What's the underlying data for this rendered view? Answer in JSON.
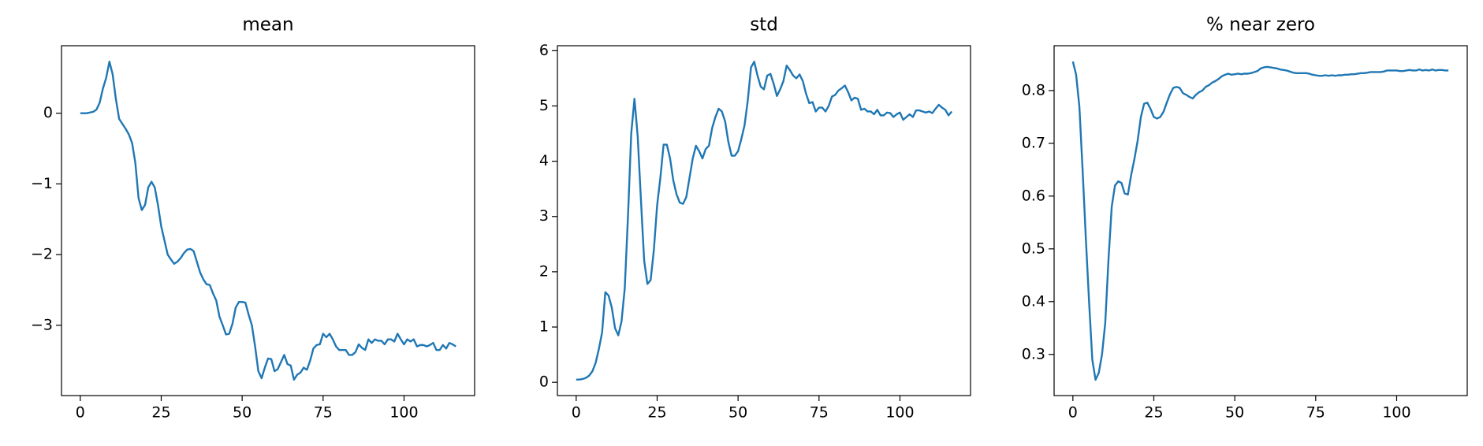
{
  "chart_data": [
    {
      "type": "line",
      "title": "mean",
      "color": "#1f77b4",
      "x": [
        0,
        1,
        2,
        3,
        4,
        5,
        6,
        7,
        8,
        9,
        10,
        11,
        12,
        13,
        14,
        15,
        16,
        17,
        18,
        19,
        20,
        21,
        22,
        23,
        24,
        25,
        26,
        27,
        28,
        29,
        30,
        31,
        32,
        33,
        34,
        35,
        36,
        37,
        38,
        39,
        40,
        41,
        42,
        43,
        44,
        45,
        46,
        47,
        48,
        49,
        50,
        51,
        52,
        53,
        54,
        55,
        56,
        57,
        58,
        59,
        60,
        61,
        62,
        63,
        64,
        65,
        66,
        67,
        68,
        69,
        70,
        71,
        72,
        73,
        74,
        75,
        76,
        77,
        78,
        79,
        80,
        81,
        82,
        83,
        84,
        85,
        86,
        87,
        88,
        89,
        90,
        91,
        92,
        93,
        94,
        95,
        96,
        97,
        98,
        99,
        100,
        101,
        102,
        103,
        104,
        105,
        106,
        107,
        108,
        109,
        110,
        111,
        112,
        113,
        114,
        115,
        116
      ],
      "values": [
        0,
        0,
        0,
        0.01,
        0.02,
        0.05,
        0.15,
        0.35,
        0.5,
        0.73,
        0.55,
        0.2,
        -0.08,
        -0.15,
        -0.22,
        -0.3,
        -0.42,
        -0.7,
        -1.2,
        -1.37,
        -1.3,
        -1.05,
        -0.97,
        -1.05,
        -1.3,
        -1.6,
        -1.8,
        -2.0,
        -2.07,
        -2.13,
        -2.1,
        -2.05,
        -1.98,
        -1.93,
        -1.92,
        -1.95,
        -2.1,
        -2.25,
        -2.35,
        -2.42,
        -2.43,
        -2.55,
        -2.65,
        -2.88,
        -3.0,
        -3.13,
        -3.12,
        -2.98,
        -2.75,
        -2.67,
        -2.67,
        -2.68,
        -2.85,
        -3.0,
        -3.3,
        -3.65,
        -3.75,
        -3.6,
        -3.47,
        -3.48,
        -3.65,
        -3.62,
        -3.52,
        -3.42,
        -3.55,
        -3.57,
        -3.77,
        -3.7,
        -3.67,
        -3.6,
        -3.63,
        -3.5,
        -3.33,
        -3.28,
        -3.27,
        -3.12,
        -3.17,
        -3.12,
        -3.2,
        -3.3,
        -3.35,
        -3.35,
        -3.35,
        -3.42,
        -3.42,
        -3.38,
        -3.27,
        -3.32,
        -3.35,
        -3.2,
        -3.25,
        -3.2,
        -3.22,
        -3.22,
        -3.27,
        -3.2,
        -3.2,
        -3.23,
        -3.12,
        -3.2,
        -3.27,
        -3.2,
        -3.23,
        -3.2,
        -3.3,
        -3.28,
        -3.28,
        -3.3,
        -3.28,
        -3.25,
        -3.35,
        -3.35,
        -3.28,
        -3.33,
        -3.25,
        -3.27,
        -3.3
      ],
      "xlim": [
        -5.8,
        121.8
      ],
      "xticks": [
        0,
        25,
        50,
        75,
        100
      ],
      "ylim": [
        -3.995,
        0.955
      ],
      "yticks": [
        {
          "value": -3,
          "label": "−3"
        },
        {
          "value": -2,
          "label": "−2"
        },
        {
          "value": -1,
          "label": "−1"
        },
        0
      ]
    },
    {
      "type": "line",
      "title": "std",
      "color": "#1f77b4",
      "x": [
        0,
        1,
        2,
        3,
        4,
        5,
        6,
        7,
        8,
        9,
        10,
        11,
        12,
        13,
        14,
        15,
        16,
        17,
        18,
        19,
        20,
        21,
        22,
        23,
        24,
        25,
        26,
        27,
        28,
        29,
        30,
        31,
        32,
        33,
        34,
        35,
        36,
        37,
        38,
        39,
        40,
        41,
        42,
        43,
        44,
        45,
        46,
        47,
        48,
        49,
        50,
        51,
        52,
        53,
        54,
        55,
        56,
        57,
        58,
        59,
        60,
        61,
        62,
        63,
        64,
        65,
        66,
        67,
        68,
        69,
        70,
        71,
        72,
        73,
        74,
        75,
        76,
        77,
        78,
        79,
        80,
        81,
        82,
        83,
        84,
        85,
        86,
        87,
        88,
        89,
        90,
        91,
        92,
        93,
        94,
        95,
        96,
        97,
        98,
        99,
        100,
        101,
        102,
        103,
        104,
        105,
        106,
        107,
        108,
        109,
        110,
        111,
        112,
        113,
        114,
        115,
        116
      ],
      "values": [
        0.05,
        0.05,
        0.06,
        0.08,
        0.12,
        0.2,
        0.35,
        0.6,
        0.9,
        1.63,
        1.57,
        1.35,
        0.98,
        0.85,
        1.1,
        1.7,
        3.0,
        4.5,
        5.13,
        4.45,
        3.3,
        2.2,
        1.78,
        1.85,
        2.4,
        3.2,
        3.7,
        4.3,
        4.3,
        4.05,
        3.65,
        3.4,
        3.25,
        3.23,
        3.35,
        3.7,
        4.05,
        4.28,
        4.18,
        4.05,
        4.22,
        4.28,
        4.6,
        4.8,
        4.95,
        4.9,
        4.72,
        4.35,
        4.1,
        4.1,
        4.18,
        4.4,
        4.65,
        5.1,
        5.7,
        5.8,
        5.55,
        5.35,
        5.3,
        5.55,
        5.58,
        5.4,
        5.18,
        5.3,
        5.45,
        5.73,
        5.65,
        5.55,
        5.5,
        5.57,
        5.45,
        5.22,
        5.05,
        5.07,
        4.9,
        4.97,
        4.97,
        4.9,
        5.0,
        5.17,
        5.2,
        5.28,
        5.32,
        5.37,
        5.25,
        5.1,
        5.15,
        5.13,
        4.93,
        4.95,
        4.9,
        4.9,
        4.85,
        4.93,
        4.83,
        4.83,
        4.88,
        4.87,
        4.8,
        4.85,
        4.88,
        4.75,
        4.8,
        4.85,
        4.8,
        4.92,
        4.92,
        4.9,
        4.88,
        4.9,
        4.87,
        4.95,
        5.02,
        4.97,
        4.93,
        4.83,
        4.9
      ],
      "xlim": [
        -5.8,
        121.8
      ],
      "xticks": [
        0,
        25,
        50,
        75,
        100
      ],
      "ylim": [
        -0.24,
        6.09
      ],
      "yticks": [
        0,
        1,
        2,
        3,
        4,
        5,
        6
      ]
    },
    {
      "type": "line",
      "title": "% near zero",
      "color": "#1f77b4",
      "x": [
        0,
        1,
        2,
        3,
        4,
        5,
        6,
        7,
        8,
        9,
        10,
        11,
        12,
        13,
        14,
        15,
        16,
        17,
        18,
        19,
        20,
        21,
        22,
        23,
        24,
        25,
        26,
        27,
        28,
        29,
        30,
        31,
        32,
        33,
        34,
        35,
        36,
        37,
        38,
        39,
        40,
        41,
        42,
        43,
        44,
        45,
        46,
        47,
        48,
        49,
        50,
        51,
        52,
        53,
        54,
        55,
        56,
        57,
        58,
        59,
        60,
        61,
        62,
        63,
        64,
        65,
        66,
        67,
        68,
        69,
        70,
        71,
        72,
        73,
        74,
        75,
        76,
        77,
        78,
        79,
        80,
        81,
        82,
        83,
        84,
        85,
        86,
        87,
        88,
        89,
        90,
        91,
        92,
        93,
        94,
        95,
        96,
        97,
        98,
        99,
        100,
        101,
        102,
        103,
        104,
        105,
        106,
        107,
        108,
        109,
        110,
        111,
        112,
        113,
        114,
        115,
        116
      ],
      "values": [
        0.855,
        0.83,
        0.77,
        0.65,
        0.52,
        0.4,
        0.29,
        0.252,
        0.265,
        0.3,
        0.36,
        0.48,
        0.58,
        0.62,
        0.628,
        0.625,
        0.605,
        0.603,
        0.64,
        0.67,
        0.705,
        0.75,
        0.775,
        0.777,
        0.765,
        0.75,
        0.747,
        0.75,
        0.76,
        0.777,
        0.793,
        0.805,
        0.807,
        0.805,
        0.795,
        0.792,
        0.788,
        0.785,
        0.792,
        0.797,
        0.8,
        0.807,
        0.81,
        0.815,
        0.818,
        0.822,
        0.827,
        0.83,
        0.832,
        0.83,
        0.831,
        0.832,
        0.831,
        0.832,
        0.832,
        0.833,
        0.835,
        0.837,
        0.842,
        0.844,
        0.845,
        0.844,
        0.843,
        0.842,
        0.84,
        0.839,
        0.838,
        0.836,
        0.834,
        0.833,
        0.833,
        0.833,
        0.833,
        0.832,
        0.83,
        0.829,
        0.828,
        0.828,
        0.829,
        0.828,
        0.829,
        0.828,
        0.829,
        0.829,
        0.83,
        0.83,
        0.831,
        0.831,
        0.832,
        0.833,
        0.833,
        0.834,
        0.835,
        0.835,
        0.835,
        0.835,
        0.836,
        0.838,
        0.838,
        0.838,
        0.838,
        0.837,
        0.837,
        0.838,
        0.839,
        0.838,
        0.838,
        0.84,
        0.838,
        0.839,
        0.838,
        0.84,
        0.838,
        0.839,
        0.839,
        0.838,
        0.838
      ],
      "xlim": [
        -5.8,
        121.8
      ],
      "xticks": [
        0,
        25,
        50,
        75,
        100
      ],
      "ylim": [
        0.222,
        0.885
      ],
      "yticks": [
        0.3,
        0.4,
        0.5,
        0.6,
        0.7,
        0.8
      ]
    }
  ]
}
